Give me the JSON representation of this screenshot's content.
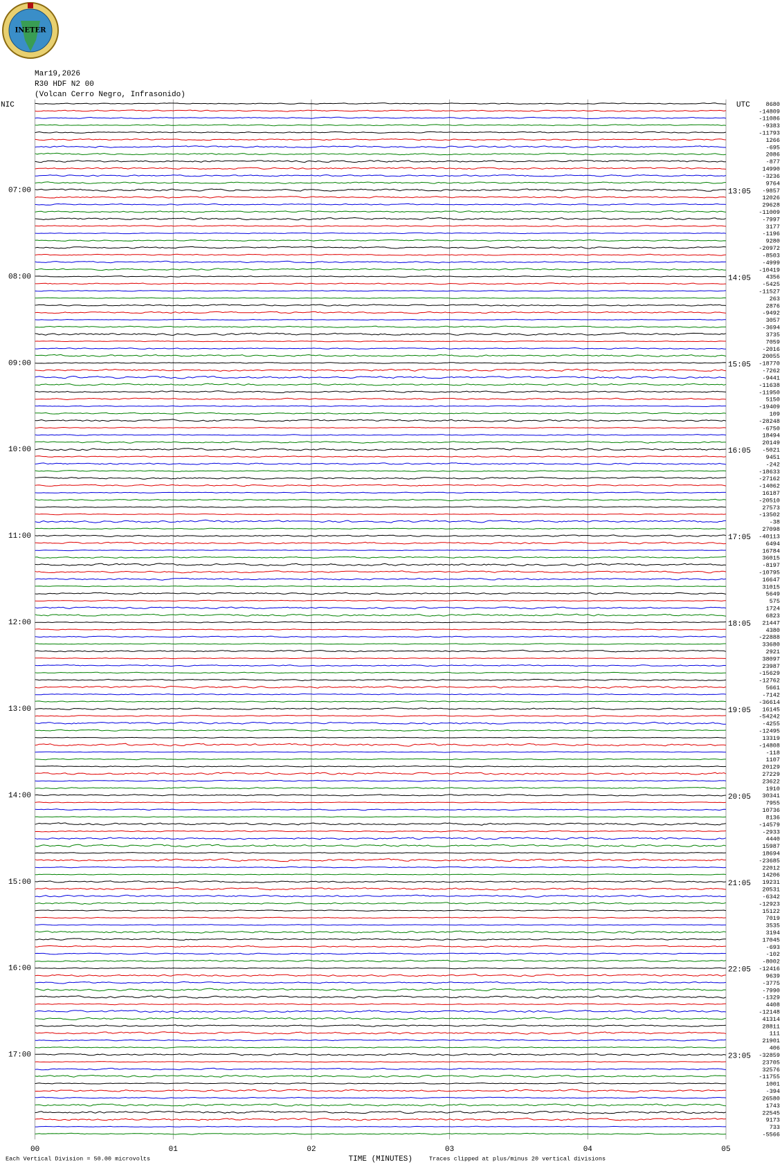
{
  "header": {
    "logo": "INETER",
    "date": "Mar19,2026",
    "station": "R30 HDF N2 00",
    "location": "(Volcan Cerro Negro, Infrasonido)",
    "left_zone": "NIC",
    "right_zone": "UTC"
  },
  "time_labels_left": [
    "07:00",
    "08:00",
    "09:00",
    "10:00",
    "11:00",
    "12:00",
    "13:00",
    "14:00",
    "15:00",
    "16:00",
    "17:00"
  ],
  "time_labels_right": [
    "13:05",
    "14:05",
    "15:05",
    "16:05",
    "17:05",
    "18:05",
    "19:05",
    "20:05",
    "21:05",
    "22:05",
    "23:05"
  ],
  "trace_offsets": [
    8680,
    -14809,
    -11086,
    -9383,
    -11793,
    1266,
    -695,
    2086,
    -877,
    14990,
    -3236,
    9764,
    -9857,
    12026,
    29628,
    -11009,
    -7997,
    3177,
    -1196,
    9280,
    -20972,
    -8503,
    -4999,
    -10419,
    4356,
    -5425,
    -11527,
    263,
    2876,
    -9492,
    3057,
    -3694,
    3735,
    7059,
    -2016,
    20055,
    -18770,
    -7262,
    -9441,
    -11638,
    -11950,
    5150,
    -19409,
    109,
    -28248,
    -6750,
    18494,
    20149,
    -5021,
    9451,
    -242,
    -18633,
    -27162,
    -14062,
    16187,
    -20510,
    27573,
    -13502,
    -38,
    27098,
    -40113,
    6494,
    16784,
    36015,
    -8197,
    -10795,
    16647,
    31015,
    5649,
    575,
    1724,
    6823,
    21447,
    4380,
    -22888,
    33680,
    2921,
    38097,
    23987,
    -15629,
    -12762,
    5661,
    -7142,
    -36614,
    16145,
    -54242,
    -4255,
    -12495,
    13319,
    -14808,
    -118,
    1107,
    20129,
    27229,
    23622,
    1910,
    30341,
    7955,
    10736,
    8136,
    -14579,
    -2933,
    4440,
    15987,
    18694,
    -23685,
    22012,
    14206,
    19231,
    20531,
    -6342,
    -12923,
    15122,
    7019,
    3535,
    3194,
    17045,
    -693,
    -102,
    -8002,
    -12416,
    9639,
    -3775,
    -7990,
    -1329,
    4408,
    -12148,
    41314,
    28811,
    111,
    21901,
    406,
    -32859,
    23705,
    32576,
    -11755,
    1001,
    -394,
    26580,
    1743,
    22545,
    9173,
    733,
    -5566
  ],
  "trace_colors": [
    "#000000",
    "#e00000",
    "#0000e0",
    "#008000"
  ],
  "x_axis": {
    "ticks": [
      "00",
      "01",
      "02",
      "03",
      "04",
      "05"
    ],
    "label": "TIME (MINUTES)"
  },
  "footer": {
    "scale": "Each Vertical Division =    50.00 microvolts",
    "clip": "Traces clipped at plus/minus 20 vertical divisions"
  }
}
